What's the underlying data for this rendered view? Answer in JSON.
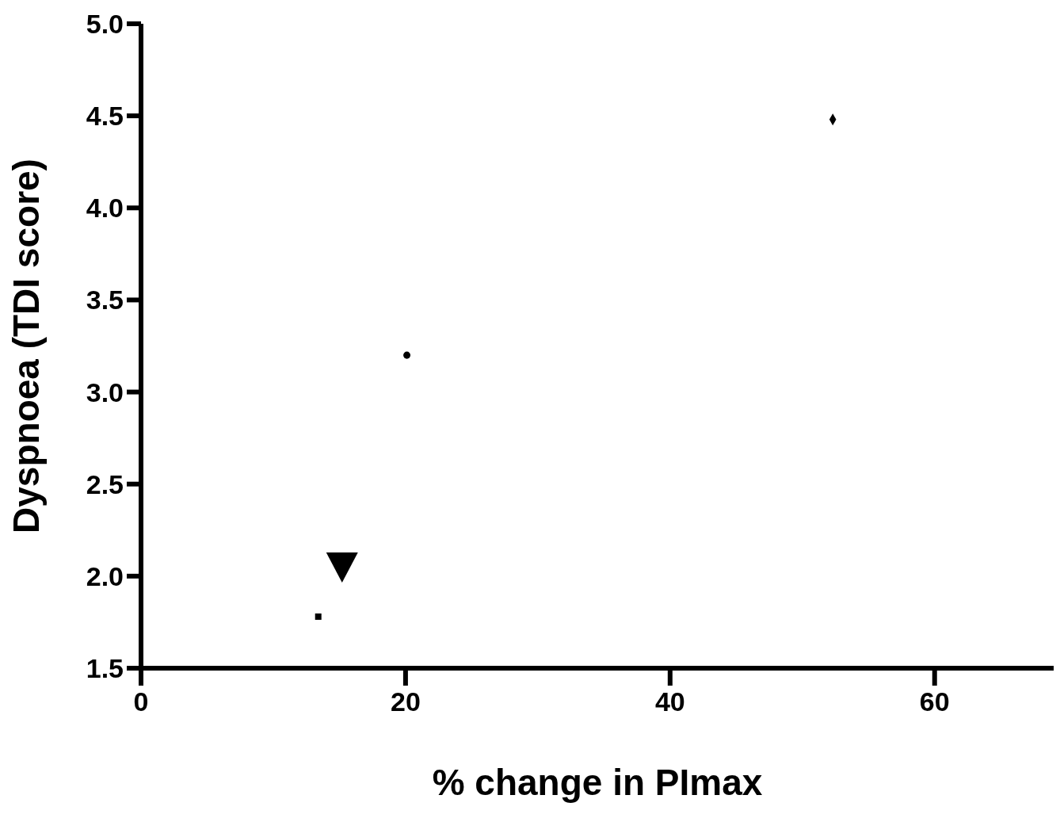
{
  "chart_data": {
    "type": "scatter",
    "xlabel": "% change in PImax",
    "ylabel": "Dyspnoea (TDI score)",
    "xlim": [
      0,
      69
    ],
    "xticks": [
      0,
      20,
      40,
      60
    ],
    "ylim": [
      1.5,
      5
    ],
    "yticks": [
      {
        "value": 1.5,
        "label": "1.5"
      },
      {
        "value": 2,
        "label": "2.0"
      },
      {
        "value": 2.5,
        "label": "2.5"
      },
      {
        "value": 3,
        "label": "3.0"
      },
      {
        "value": 3.5,
        "label": "3.5"
      },
      {
        "value": 4,
        "label": "4.0"
      },
      {
        "value": 4.5,
        "label": "4.5"
      },
      {
        "value": 5,
        "label": "5.0"
      }
    ],
    "grid": false,
    "legend": false,
    "series": [
      {
        "type": "scatter",
        "marker": "square",
        "color": "#000000",
        "x": [
          13.4
        ],
        "values": [
          1.78
        ]
      },
      {
        "type": "scatter",
        "marker": "triangle",
        "color": "#000000",
        "x": [
          15.2
        ],
        "values": [
          2.06
        ]
      },
      {
        "type": "scatter",
        "marker": "circle",
        "color": "#000000",
        "x": [
          20.1
        ],
        "values": [
          3.2
        ]
      },
      {
        "type": "scatter",
        "marker": "diamond",
        "color": "#000000",
        "x": [
          52.3
        ],
        "values": [
          4.48
        ]
      }
    ]
  }
}
